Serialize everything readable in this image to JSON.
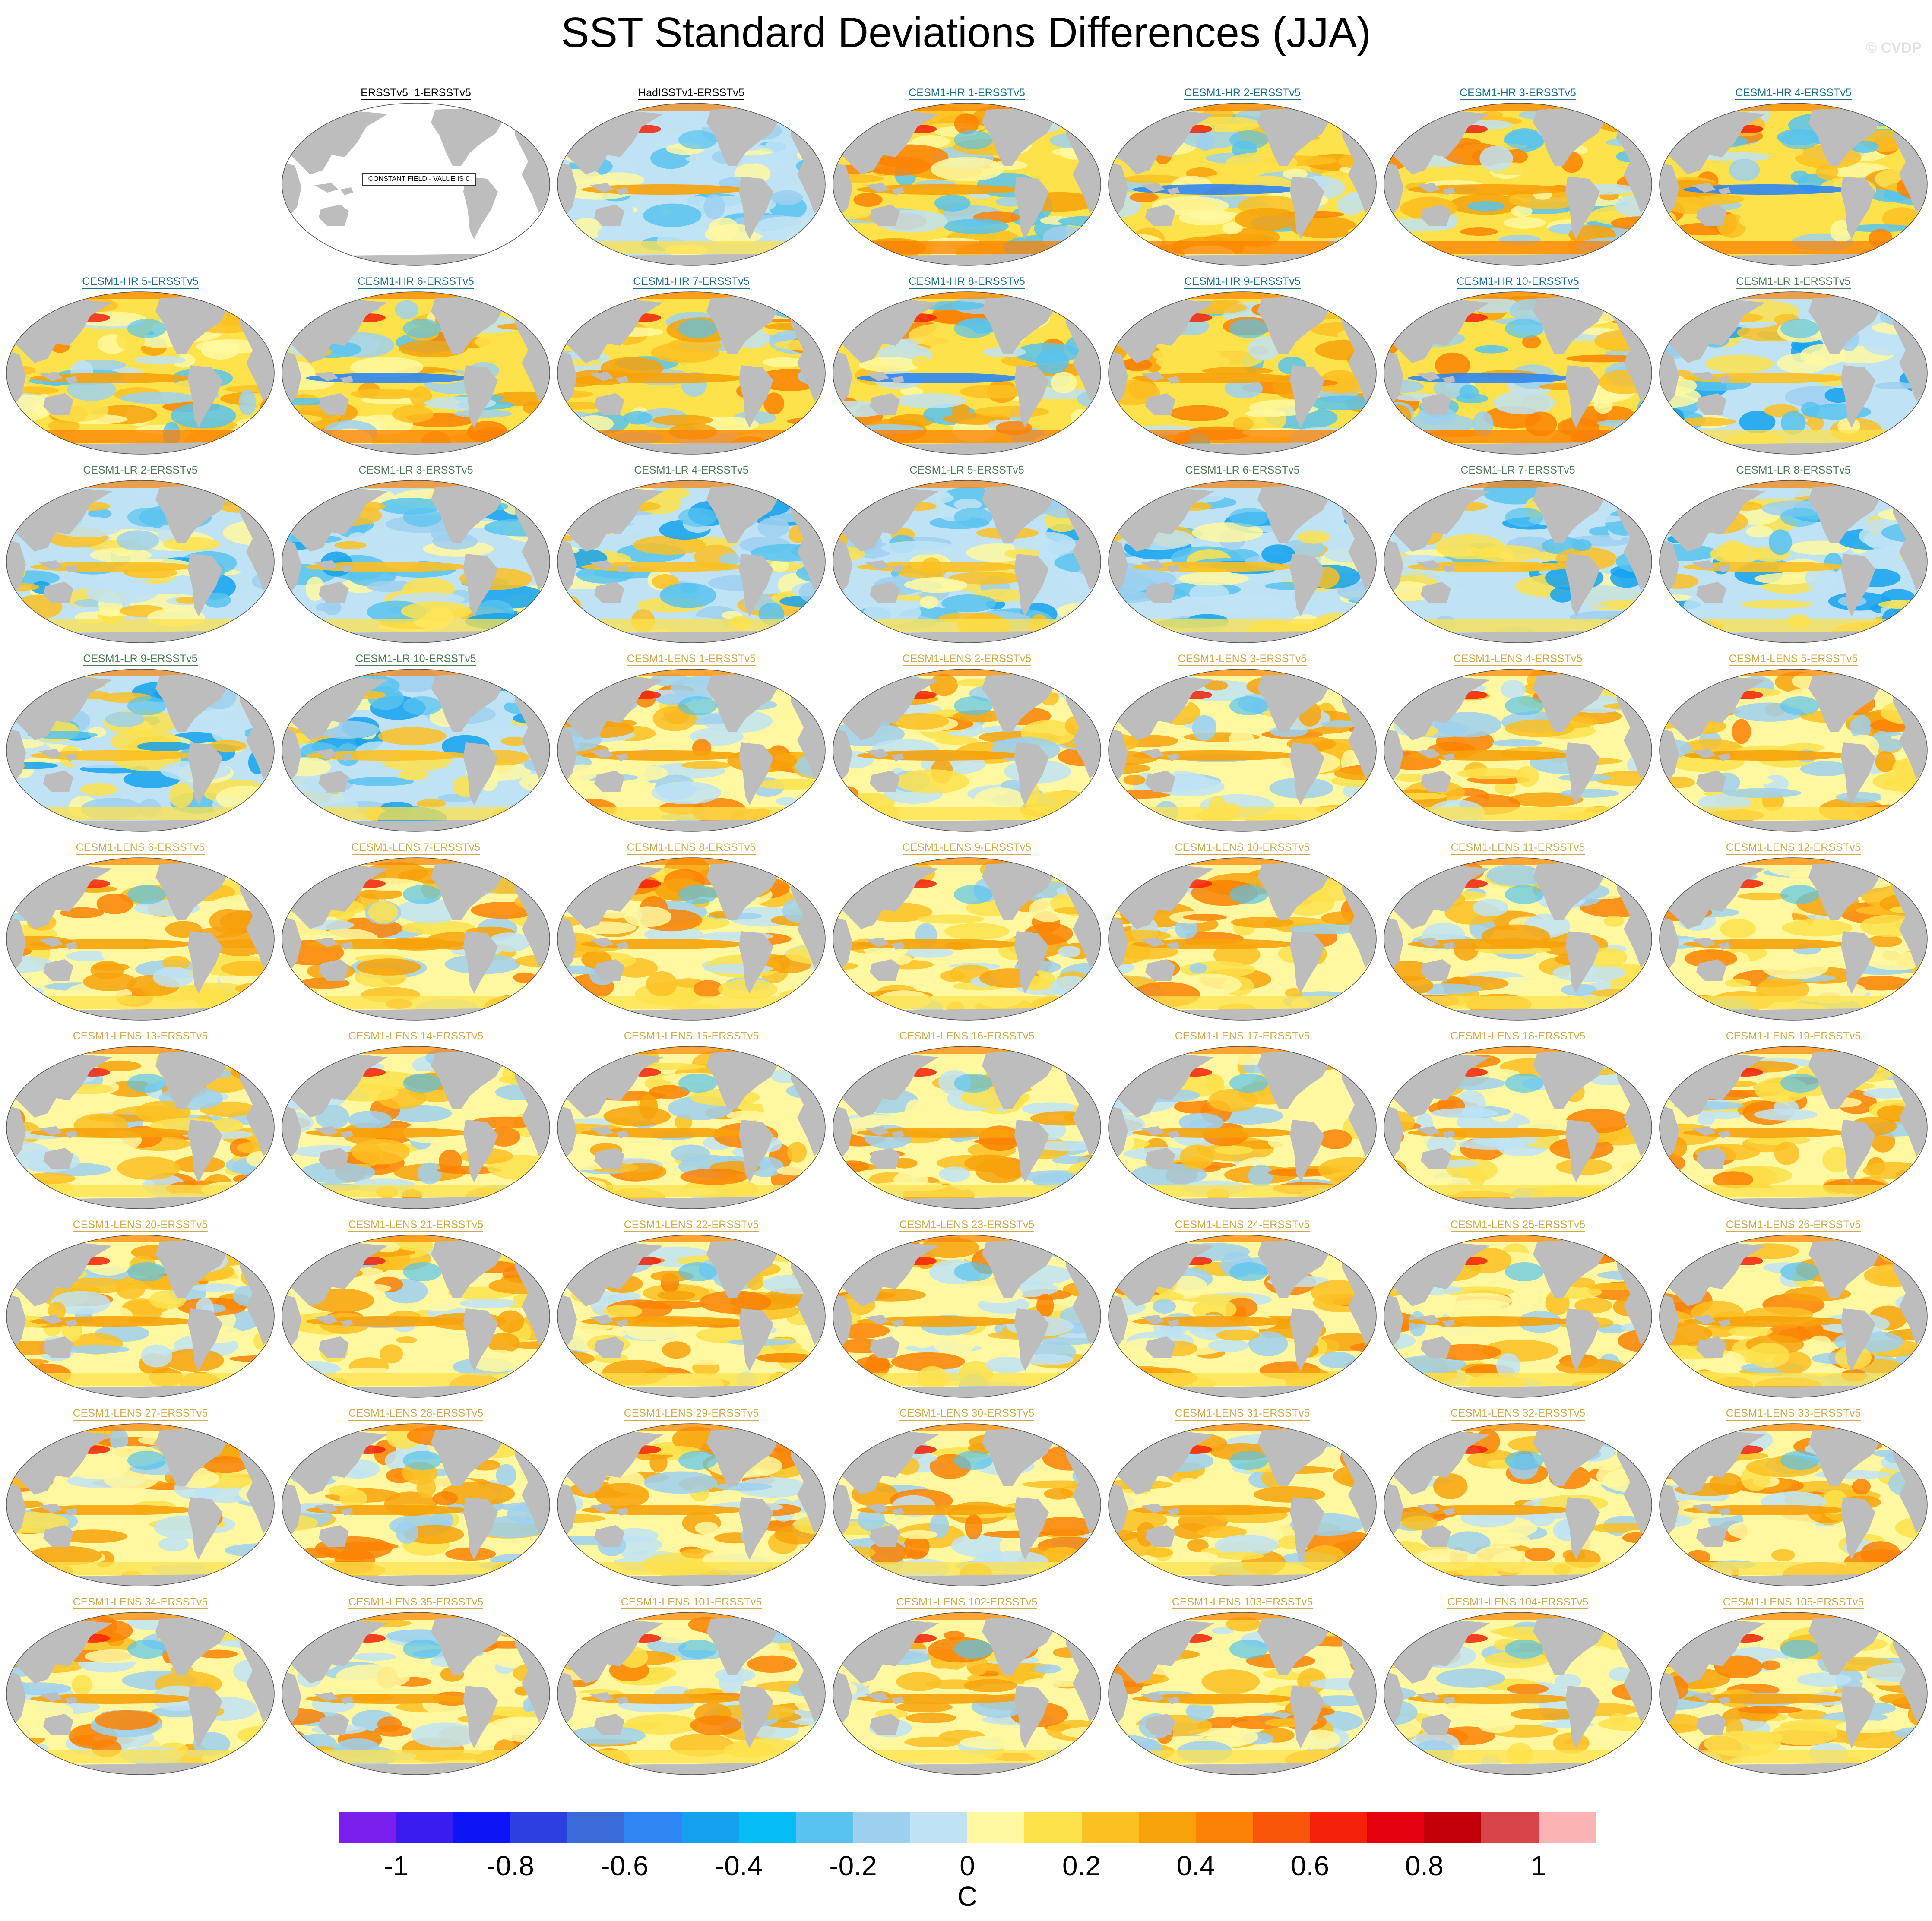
{
  "title": "SST Standard Deviations Differences (JJA)",
  "watermark": "© CVDP",
  "panels": [
    {
      "label": "ERSSTv5_1-ERSSTv5",
      "group": "obs",
      "constant": true,
      "note": "CONSTANT FIELD - VALUE IS 0"
    },
    {
      "label": "HadISSTv1-ERSSTv5",
      "group": "obs",
      "constant": false
    },
    {
      "label": "CESM1-HR 1-ERSSTv5",
      "group": "hr"
    },
    {
      "label": "CESM1-HR 2-ERSSTv5",
      "group": "hr"
    },
    {
      "label": "CESM1-HR 3-ERSSTv5",
      "group": "hr"
    },
    {
      "label": "CESM1-HR 4-ERSSTv5",
      "group": "hr"
    },
    {
      "label": "CESM1-HR 5-ERSSTv5",
      "group": "hr"
    },
    {
      "label": "CESM1-HR 6-ERSSTv5",
      "group": "hr"
    },
    {
      "label": "CESM1-HR 7-ERSSTv5",
      "group": "hr"
    },
    {
      "label": "CESM1-HR 8-ERSSTv5",
      "group": "hr"
    },
    {
      "label": "CESM1-HR 9-ERSSTv5",
      "group": "hr"
    },
    {
      "label": "CESM1-HR 10-ERSSTv5",
      "group": "hr"
    },
    {
      "label": "CESM1-LR 1-ERSSTv5",
      "group": "lr"
    },
    {
      "label": "CESM1-LR 2-ERSSTv5",
      "group": "lr"
    },
    {
      "label": "CESM1-LR 3-ERSSTv5",
      "group": "lr"
    },
    {
      "label": "CESM1-LR 4-ERSSTv5",
      "group": "lr"
    },
    {
      "label": "CESM1-LR 5-ERSSTv5",
      "group": "lr"
    },
    {
      "label": "CESM1-LR 6-ERSSTv5",
      "group": "lr"
    },
    {
      "label": "CESM1-LR 7-ERSSTv5",
      "group": "lr"
    },
    {
      "label": "CESM1-LR 8-ERSSTv5",
      "group": "lr"
    },
    {
      "label": "CESM1-LR 9-ERSSTv5",
      "group": "lr"
    },
    {
      "label": "CESM1-LR 10-ERSSTv5",
      "group": "lr"
    },
    {
      "label": "CESM1-LENS 1-ERSSTv5",
      "group": "lens"
    },
    {
      "label": "CESM1-LENS 2-ERSSTv5",
      "group": "lens"
    },
    {
      "label": "CESM1-LENS 3-ERSSTv5",
      "group": "lens"
    },
    {
      "label": "CESM1-LENS 4-ERSSTv5",
      "group": "lens"
    },
    {
      "label": "CESM1-LENS 5-ERSSTv5",
      "group": "lens"
    },
    {
      "label": "CESM1-LENS 6-ERSSTv5",
      "group": "lens"
    },
    {
      "label": "CESM1-LENS 7-ERSSTv5",
      "group": "lens"
    },
    {
      "label": "CESM1-LENS 8-ERSSTv5",
      "group": "lens"
    },
    {
      "label": "CESM1-LENS 9-ERSSTv5",
      "group": "lens"
    },
    {
      "label": "CESM1-LENS 10-ERSSTv5",
      "group": "lens"
    },
    {
      "label": "CESM1-LENS 11-ERSSTv5",
      "group": "lens"
    },
    {
      "label": "CESM1-LENS 12-ERSSTv5",
      "group": "lens"
    },
    {
      "label": "CESM1-LENS 13-ERSSTv5",
      "group": "lens"
    },
    {
      "label": "CESM1-LENS 14-ERSSTv5",
      "group": "lens"
    },
    {
      "label": "CESM1-LENS 15-ERSSTv5",
      "group": "lens"
    },
    {
      "label": "CESM1-LENS 16-ERSSTv5",
      "group": "lens"
    },
    {
      "label": "CESM1-LENS 17-ERSSTv5",
      "group": "lens"
    },
    {
      "label": "CESM1-LENS 18-ERSSTv5",
      "group": "lens"
    },
    {
      "label": "CESM1-LENS 19-ERSSTv5",
      "group": "lens"
    },
    {
      "label": "CESM1-LENS 20-ERSSTv5",
      "group": "lens"
    },
    {
      "label": "CESM1-LENS 21-ERSSTv5",
      "group": "lens"
    },
    {
      "label": "CESM1-LENS 22-ERSSTv5",
      "group": "lens"
    },
    {
      "label": "CESM1-LENS 23-ERSSTv5",
      "group": "lens"
    },
    {
      "label": "CESM1-LENS 24-ERSSTv5",
      "group": "lens"
    },
    {
      "label": "CESM1-LENS 25-ERSSTv5",
      "group": "lens"
    },
    {
      "label": "CESM1-LENS 26-ERSSTv5",
      "group": "lens"
    },
    {
      "label": "CESM1-LENS 27-ERSSTv5",
      "group": "lens"
    },
    {
      "label": "CESM1-LENS 28-ERSSTv5",
      "group": "lens"
    },
    {
      "label": "CESM1-LENS 29-ERSSTv5",
      "group": "lens"
    },
    {
      "label": "CESM1-LENS 30-ERSSTv5",
      "group": "lens"
    },
    {
      "label": "CESM1-LENS 31-ERSSTv5",
      "group": "lens"
    },
    {
      "label": "CESM1-LENS 32-ERSSTv5",
      "group": "lens"
    },
    {
      "label": "CESM1-LENS 33-ERSSTv5",
      "group": "lens"
    },
    {
      "label": "CESM1-LENS 34-ERSSTv5",
      "group": "lens"
    },
    {
      "label": "CESM1-LENS 35-ERSSTv5",
      "group": "lens"
    },
    {
      "label": "CESM1-LENS 101-ERSSTv5",
      "group": "lens"
    },
    {
      "label": "CESM1-LENS 102-ERSSTv5",
      "group": "lens"
    },
    {
      "label": "CESM1-LENS 103-ERSSTv5",
      "group": "lens"
    },
    {
      "label": "CESM1-LENS 104-ERSSTv5",
      "group": "lens"
    },
    {
      "label": "CESM1-LENS 105-ERSSTv5",
      "group": "lens"
    }
  ],
  "group_colors": {
    "obs": "#000000",
    "hr": "#1a6e8c",
    "lr": "#4a7a52",
    "lens": "#d2a94a"
  },
  "colors": {
    "land": "#bdbdbd",
    "ocean_neutral": "#ffffff"
  },
  "colorbar": {
    "units": "C",
    "colors": [
      "#7a1fec",
      "#3a1cf0",
      "#0b15f5",
      "#2c3fe0",
      "#3b6ad9",
      "#2f86f2",
      "#14a2ef",
      "#06bcf6",
      "#58c3ee",
      "#9dd0ef",
      "#bfe3f5",
      "#fff8a0",
      "#fde24c",
      "#fbc022",
      "#f7a20a",
      "#fb8204",
      "#f9560a",
      "#f5210b",
      "#e4000c",
      "#c30009",
      "#d94448",
      "#fcb3b3"
    ],
    "tick_labels": [
      "-1",
      "-0.8",
      "-0.6",
      "-0.4",
      "-0.2",
      "0",
      "0.2",
      "0.4",
      "0.6",
      "0.8",
      "1"
    ]
  }
}
